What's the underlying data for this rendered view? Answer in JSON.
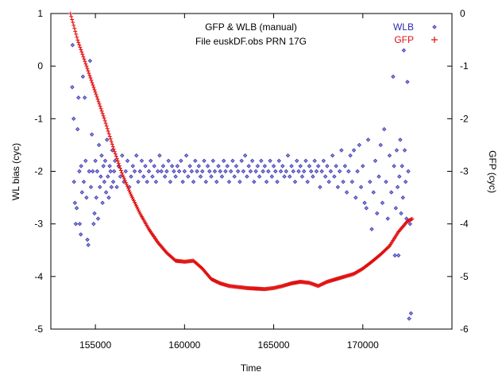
{
  "chart_data": {
    "type": "scatter",
    "title_lines": [
      "GFP & WLB (manual)",
      "File euskDF.obs PRN 17G"
    ],
    "xlabel": "Time",
    "ylabel_left": "WL bias (cyc)",
    "ylabel_right": "GFP (cyc)",
    "xlim": [
      152500,
      175000
    ],
    "ylim_left": [
      -5,
      1
    ],
    "ylim_right": [
      -6,
      0
    ],
    "x_ticks": [
      "155000",
      "160000",
      "165000",
      "170000"
    ],
    "y_ticks_left": [
      "1",
      "0",
      "-1",
      "-2",
      "-3",
      "-4",
      "-5"
    ],
    "y_ticks_right": [
      "0",
      "-1",
      "-2",
      "-3",
      "-4",
      "-5",
      "-6"
    ],
    "x_tick_values": [
      155000,
      160000,
      165000,
      170000
    ],
    "y_tick_values_left": [
      1,
      0,
      -1,
      -2,
      -3,
      -4,
      -5
    ],
    "y_tick_values_right": [
      0,
      -1,
      -2,
      -3,
      -4,
      -5,
      -6
    ],
    "legend_position": "top-right",
    "series": [
      {
        "name": "WLB",
        "axis": "left",
        "marker": "diamond",
        "color": "#2b2bb0",
        "points": [
          [
            153700,
            -0.4
          ],
          [
            153720,
            0.4
          ],
          [
            153780,
            -1.0
          ],
          [
            153800,
            -2.2
          ],
          [
            153850,
            -2.6
          ],
          [
            153900,
            -3.0
          ],
          [
            153950,
            -2.7
          ],
          [
            154000,
            -1.2
          ],
          [
            154050,
            -0.6
          ],
          [
            154100,
            -2.0
          ],
          [
            154120,
            -3.0
          ],
          [
            154180,
            -3.2
          ],
          [
            154200,
            -1.9
          ],
          [
            154250,
            -2.4
          ],
          [
            154300,
            -0.2
          ],
          [
            154350,
            -2.2
          ],
          [
            154400,
            -0.6
          ],
          [
            154450,
            -1.8
          ],
          [
            154500,
            -2.5
          ],
          [
            154550,
            -3.3
          ],
          [
            154600,
            -3.4
          ],
          [
            154650,
            -2.0
          ],
          [
            154700,
            0.1
          ],
          [
            154750,
            -2.3
          ],
          [
            154800,
            -1.3
          ],
          [
            154850,
            -2.0
          ],
          [
            154900,
            -3.0
          ],
          [
            154950,
            -2.8
          ],
          [
            155000,
            -1.8
          ],
          [
            155050,
            -2.5
          ],
          [
            155100,
            -2.0
          ],
          [
            155150,
            -2.9
          ],
          [
            155200,
            -1.5
          ],
          [
            155250,
            -2.3
          ],
          [
            155300,
            -2.1
          ],
          [
            155350,
            -1.7
          ],
          [
            155400,
            -2.6
          ],
          [
            155450,
            -1.9
          ],
          [
            155500,
            -2.2
          ],
          [
            155550,
            -1.8
          ],
          [
            155600,
            -2.4
          ],
          [
            155650,
            -1.4
          ],
          [
            155700,
            -2.1
          ],
          [
            155750,
            -2.5
          ],
          [
            155800,
            -1.9
          ],
          [
            155850,
            -2.0
          ],
          [
            155900,
            -2.3
          ],
          [
            155950,
            -1.6
          ],
          [
            156000,
            -2.2
          ],
          [
            156050,
            -2.0
          ],
          [
            156100,
            -1.8
          ],
          [
            156200,
            -2.3
          ],
          [
            156300,
            -1.9
          ],
          [
            156400,
            -2.1
          ],
          [
            156500,
            -1.7
          ],
          [
            156600,
            -2.2
          ],
          [
            156700,
            -2.0
          ],
          [
            156800,
            -1.8
          ],
          [
            156900,
            -2.3
          ],
          [
            157000,
            -2.1
          ],
          [
            157100,
            -1.9
          ],
          [
            157200,
            -2.0
          ],
          [
            157300,
            -1.7
          ],
          [
            157400,
            -2.2
          ],
          [
            157500,
            -2.0
          ],
          [
            157600,
            -1.8
          ],
          [
            157700,
            -2.1
          ],
          [
            157800,
            -1.9
          ],
          [
            157900,
            -2.2
          ],
          [
            158000,
            -2.0
          ],
          [
            158100,
            -1.8
          ],
          [
            158200,
            -2.1
          ],
          [
            158300,
            -1.9
          ],
          [
            158400,
            -2.2
          ],
          [
            158500,
            -2.0
          ],
          [
            158600,
            -1.7
          ],
          [
            158700,
            -2.0
          ],
          [
            158800,
            -1.9
          ],
          [
            158900,
            -2.1
          ],
          [
            159000,
            -2.0
          ],
          [
            159100,
            -1.8
          ],
          [
            159200,
            -2.2
          ],
          [
            159300,
            -1.9
          ],
          [
            159400,
            -2.0
          ],
          [
            159500,
            -2.1
          ],
          [
            159600,
            -1.9
          ],
          [
            159700,
            -2.0
          ],
          [
            159800,
            -1.8
          ],
          [
            159900,
            -2.2
          ],
          [
            160000,
            -2.0
          ],
          [
            160100,
            -1.7
          ],
          [
            160200,
            -2.1
          ],
          [
            160300,
            -1.9
          ],
          [
            160400,
            -2.0
          ],
          [
            160500,
            -2.2
          ],
          [
            160600,
            -1.8
          ],
          [
            160700,
            -2.0
          ],
          [
            160800,
            -1.9
          ],
          [
            160900,
            -2.1
          ],
          [
            161000,
            -2.0
          ],
          [
            161100,
            -1.8
          ],
          [
            161200,
            -2.2
          ],
          [
            161300,
            -1.9
          ],
          [
            161400,
            -2.0
          ],
          [
            161500,
            -2.1
          ],
          [
            161600,
            -1.8
          ],
          [
            161700,
            -2.0
          ],
          [
            161800,
            -2.2
          ],
          [
            161900,
            -1.9
          ],
          [
            162000,
            -2.0
          ],
          [
            162100,
            -2.1
          ],
          [
            162200,
            -1.8
          ],
          [
            162300,
            -2.0
          ],
          [
            162400,
            -1.9
          ],
          [
            162500,
            -2.2
          ],
          [
            162600,
            -2.0
          ],
          [
            162700,
            -1.8
          ],
          [
            162800,
            -2.1
          ],
          [
            162900,
            -1.9
          ],
          [
            163000,
            -2.0
          ],
          [
            163100,
            -2.2
          ],
          [
            163200,
            -1.8
          ],
          [
            163300,
            -2.0
          ],
          [
            163400,
            -1.7
          ],
          [
            163500,
            -2.1
          ],
          [
            163600,
            -1.9
          ],
          [
            163700,
            -2.0
          ],
          [
            163800,
            -1.8
          ],
          [
            163900,
            -2.2
          ],
          [
            164000,
            -2.0
          ],
          [
            164100,
            -1.9
          ],
          [
            164200,
            -2.1
          ],
          [
            164300,
            -1.8
          ],
          [
            164400,
            -2.0
          ],
          [
            164500,
            -1.9
          ],
          [
            164600,
            -2.2
          ],
          [
            164700,
            -2.0
          ],
          [
            164800,
            -1.8
          ],
          [
            164900,
            -2.1
          ],
          [
            165000,
            -1.9
          ],
          [
            165100,
            -2.0
          ],
          [
            165200,
            -2.2
          ],
          [
            165300,
            -1.8
          ],
          [
            165400,
            -2.0
          ],
          [
            165500,
            -1.9
          ],
          [
            165600,
            -2.1
          ],
          [
            165700,
            -2.0
          ],
          [
            165800,
            -1.7
          ],
          [
            165900,
            -2.1
          ],
          [
            166000,
            -1.9
          ],
          [
            166100,
            -2.0
          ],
          [
            166200,
            -2.2
          ],
          [
            166300,
            -1.8
          ],
          [
            166400,
            -2.0
          ],
          [
            166500,
            -1.9
          ],
          [
            166600,
            -2.1
          ],
          [
            166700,
            -2.0
          ],
          [
            166800,
            -1.8
          ],
          [
            166900,
            -2.2
          ],
          [
            167000,
            -1.9
          ],
          [
            167100,
            -2.0
          ],
          [
            167200,
            -2.1
          ],
          [
            167300,
            -1.8
          ],
          [
            167400,
            -2.0
          ],
          [
            167500,
            -1.9
          ],
          [
            167600,
            -2.3
          ],
          [
            167700,
            -2.0
          ],
          [
            167800,
            -1.8
          ],
          [
            167900,
            -2.1
          ],
          [
            168000,
            -1.9
          ],
          [
            168100,
            -2.2
          ],
          [
            168200,
            -2.0
          ],
          [
            168300,
            -1.7
          ],
          [
            168400,
            -2.1
          ],
          [
            168500,
            -1.9
          ],
          [
            168600,
            -2.3
          ],
          [
            168700,
            -2.0
          ],
          [
            168800,
            -1.6
          ],
          [
            168900,
            -2.2
          ],
          [
            169000,
            -1.9
          ],
          [
            169100,
            -2.4
          ],
          [
            169200,
            -2.0
          ],
          [
            169300,
            -1.7
          ],
          [
            169400,
            -2.2
          ],
          [
            169500,
            -1.6
          ],
          [
            169600,
            -2.5
          ],
          [
            169700,
            -2.0
          ],
          [
            169800,
            -1.5
          ],
          [
            169900,
            -2.3
          ],
          [
            170000,
            -1.9
          ],
          [
            170100,
            -2.6
          ],
          [
            170200,
            -2.7
          ],
          [
            170300,
            -1.4
          ],
          [
            170400,
            -2.2
          ],
          [
            170500,
            -3.1
          ],
          [
            170600,
            -2.4
          ],
          [
            170700,
            -1.8
          ],
          [
            170800,
            -2.8
          ],
          [
            170900,
            -2.1
          ],
          [
            171000,
            -1.5
          ],
          [
            171100,
            -2.6
          ],
          [
            171200,
            -1.2
          ],
          [
            171300,
            -2.2
          ],
          [
            171400,
            -2.9
          ],
          [
            171500,
            -1.7
          ],
          [
            171600,
            -2.4
          ],
          [
            171700,
            -0.2
          ],
          [
            171750,
            -1.9
          ],
          [
            171800,
            -3.6
          ],
          [
            171850,
            -2.7
          ],
          [
            171900,
            -1.6
          ],
          [
            171950,
            -2.3
          ],
          [
            172000,
            -3.6
          ],
          [
            172050,
            -2.1
          ],
          [
            172100,
            -1.4
          ],
          [
            172150,
            -2.8
          ],
          [
            172200,
            -1.9
          ],
          [
            172250,
            -2.5
          ],
          [
            172300,
            0.3
          ],
          [
            172350,
            -1.6
          ],
          [
            172400,
            -2.2
          ],
          [
            172450,
            -2.9
          ],
          [
            172500,
            -0.3
          ],
          [
            172550,
            -2.0
          ],
          [
            172600,
            -4.8
          ],
          [
            172650,
            -3.0
          ],
          [
            172700,
            -4.7
          ]
        ]
      },
      {
        "name": "GFP",
        "axis": "right",
        "marker": "plus",
        "color": "#e01010",
        "curve_knots": [
          [
            153600,
            0.0
          ],
          [
            154000,
            -0.5
          ],
          [
            154500,
            -1.0
          ],
          [
            155000,
            -1.5
          ],
          [
            155500,
            -2.0
          ],
          [
            156000,
            -2.55
          ],
          [
            156500,
            -3.05
          ],
          [
            157000,
            -3.45
          ],
          [
            157500,
            -3.8
          ],
          [
            158000,
            -4.1
          ],
          [
            158500,
            -4.35
          ],
          [
            159000,
            -4.55
          ],
          [
            159500,
            -4.7
          ],
          [
            160000,
            -4.72
          ],
          [
            160500,
            -4.7
          ],
          [
            161000,
            -4.85
          ],
          [
            161500,
            -5.05
          ],
          [
            162000,
            -5.13
          ],
          [
            162500,
            -5.18
          ],
          [
            163000,
            -5.2
          ],
          [
            163500,
            -5.22
          ],
          [
            164000,
            -5.23
          ],
          [
            164500,
            -5.24
          ],
          [
            165000,
            -5.22
          ],
          [
            165500,
            -5.18
          ],
          [
            166000,
            -5.13
          ],
          [
            166500,
            -5.1
          ],
          [
            167000,
            -5.12
          ],
          [
            167500,
            -5.18
          ],
          [
            168000,
            -5.1
          ],
          [
            168500,
            -5.05
          ],
          [
            169000,
            -5.0
          ],
          [
            169500,
            -4.95
          ],
          [
            170000,
            -4.85
          ],
          [
            170500,
            -4.72
          ],
          [
            171000,
            -4.58
          ],
          [
            171500,
            -4.42
          ],
          [
            172000,
            -4.15
          ],
          [
            172500,
            -3.95
          ],
          [
            172800,
            -3.9
          ]
        ]
      }
    ]
  }
}
